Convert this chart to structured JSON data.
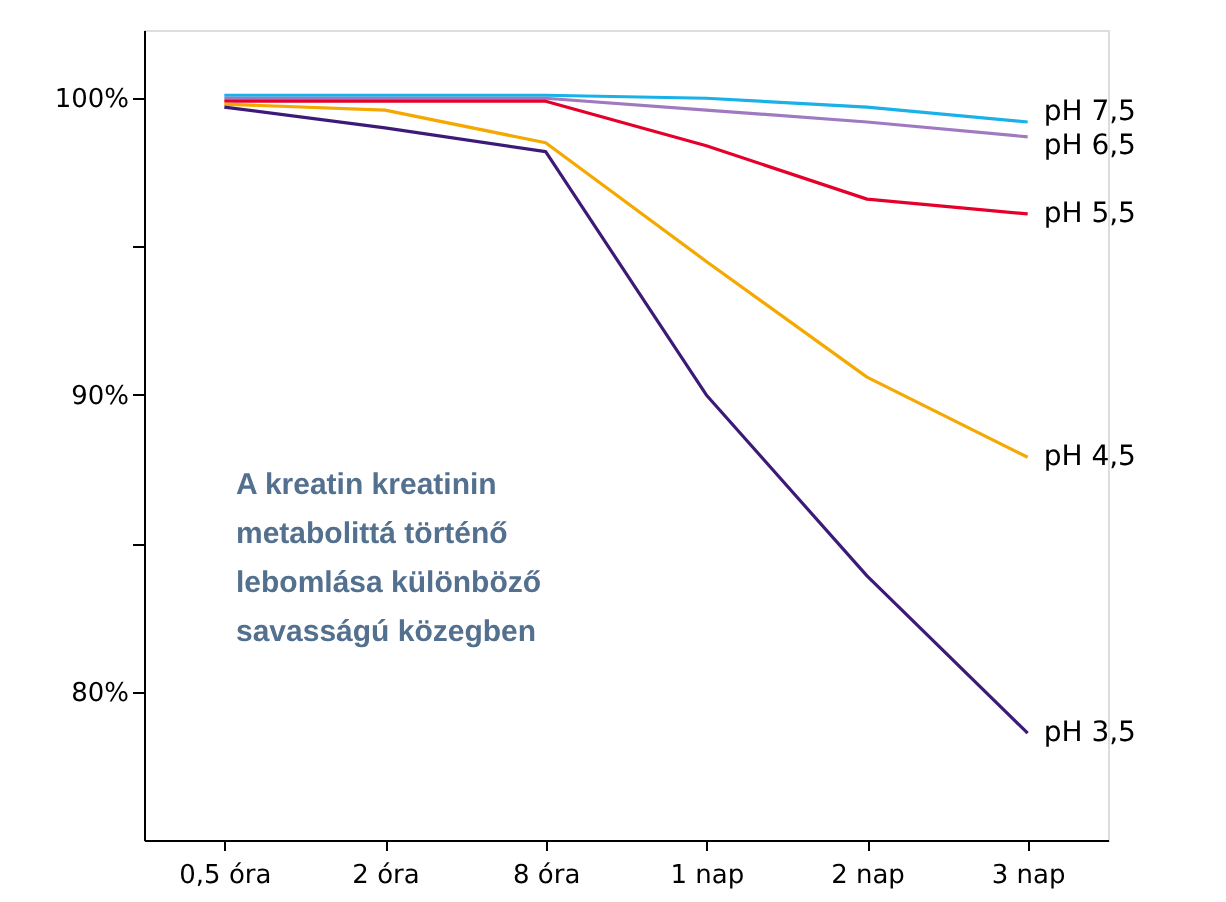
{
  "chart_data": {
    "type": "line",
    "categories": [
      "0,5 óra",
      "2 óra",
      "8 óra",
      "1 nap",
      "2 nap",
      "3 nap"
    ],
    "series": [
      {
        "name": "pH 7,5",
        "color": "#1ab0e8",
        "values": [
          100.1,
          100.1,
          100.1,
          100.0,
          99.7,
          99.2
        ]
      },
      {
        "name": "pH 6,5",
        "color": "#a07ac0",
        "values": [
          100.0,
          100.0,
          100.0,
          99.6,
          99.2,
          98.7
        ]
      },
      {
        "name": "pH 5,5",
        "color": "#e4002b",
        "values": [
          99.9,
          99.9,
          99.9,
          98.4,
          96.6,
          96.1
        ]
      },
      {
        "name": "pH 4,5",
        "color": "#f5a800",
        "values": [
          99.8,
          99.6,
          98.5,
          94.5,
          90.6,
          87.9
        ]
      },
      {
        "name": "pH 3,5",
        "color": "#3d1a78",
        "values": [
          99.7,
          99.0,
          98.2,
          90.0,
          83.9,
          78.6
        ]
      }
    ],
    "ylim": [
      75,
      102.3
    ],
    "yticks": [
      {
        "value": 100,
        "label": "100%"
      },
      {
        "value": 95,
        "label": null
      },
      {
        "value": 90,
        "label": "90%"
      },
      {
        "value": 85,
        "label": null
      },
      {
        "value": 80,
        "label": "80%"
      }
    ],
    "annotations": [
      "A kreatin kreatinin\nmetabolittá történő\nlebomlása különböző\nsavasságú közegben"
    ],
    "grid": false,
    "marker": "none",
    "line_style": "solid"
  }
}
